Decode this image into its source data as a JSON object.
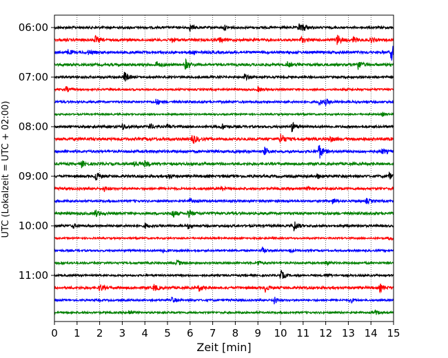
{
  "chart_data": {
    "type": "line",
    "title": "",
    "xlabel": "Zeit  [min]",
    "ylabel": "UTC (Lokalzeit = UTC + 02:00)",
    "xlim": [
      0,
      15
    ],
    "x_ticks": [
      "0",
      "1",
      "2",
      "3",
      "4",
      "5",
      "6",
      "7",
      "8",
      "9",
      "10",
      "11",
      "12",
      "13",
      "14",
      "15"
    ],
    "y_tick_labels": [
      "06:00",
      "07:00",
      "08:00",
      "09:00",
      "10:00",
      "11:00"
    ],
    "grid": "vertical dotted lines at each minute",
    "trace_interval_minutes": 15,
    "color_cycle": [
      "#000000",
      "#ff0000",
      "#0000ff",
      "#008000"
    ],
    "traces": [
      {
        "start": "06:00",
        "color": "#000000",
        "amplitude": 0.18,
        "events": [
          [
            6.0,
            0.5
          ],
          [
            7.5,
            0.4
          ],
          [
            10.8,
            0.7
          ],
          [
            11.0,
            0.5
          ]
        ]
      },
      {
        "start": "06:15",
        "color": "#ff0000",
        "amplitude": 0.2,
        "events": [
          [
            1.8,
            0.6
          ],
          [
            5.2,
            0.4
          ],
          [
            7.3,
            0.4
          ],
          [
            10.9,
            0.5
          ],
          [
            12.5,
            0.9
          ],
          [
            13.2,
            0.5
          ],
          [
            14.0,
            0.4
          ]
        ]
      },
      {
        "start": "06:30",
        "color": "#0000ff",
        "amplitude": 0.2,
        "events": [
          [
            0.6,
            0.4
          ],
          [
            1.5,
            0.3
          ],
          [
            6.0,
            0.3
          ],
          [
            14.9,
            1.4
          ]
        ]
      },
      {
        "start": "06:45",
        "color": "#008000",
        "amplitude": 0.2,
        "events": [
          [
            4.5,
            0.5
          ],
          [
            5.8,
            0.8
          ],
          [
            10.3,
            0.4
          ],
          [
            13.4,
            0.9
          ]
        ]
      },
      {
        "start": "07:00",
        "color": "#000000",
        "amplitude": 0.17,
        "events": [
          [
            3.1,
            0.9
          ],
          [
            8.4,
            0.5
          ]
        ]
      },
      {
        "start": "07:15",
        "color": "#ff0000",
        "amplitude": 0.15,
        "events": [
          [
            0.5,
            0.5
          ],
          [
            9.0,
            0.4
          ]
        ]
      },
      {
        "start": "07:30",
        "color": "#0000ff",
        "amplitude": 0.17,
        "events": [
          [
            4.5,
            0.5
          ],
          [
            11.7,
            0.5
          ],
          [
            12.0,
            0.4
          ]
        ]
      },
      {
        "start": "07:45",
        "color": "#008000",
        "amplitude": 0.13,
        "events": [
          [
            14.5,
            0.3
          ]
        ]
      },
      {
        "start": "08:00",
        "color": "#000000",
        "amplitude": 0.18,
        "events": [
          [
            3.0,
            0.5
          ],
          [
            4.2,
            0.5
          ],
          [
            5.0,
            0.4
          ],
          [
            7.4,
            0.5
          ],
          [
            10.5,
            0.8
          ]
        ]
      },
      {
        "start": "08:15",
        "color": "#ff0000",
        "amplitude": 0.22,
        "events": [
          [
            6.1,
            0.9
          ],
          [
            10.0,
            1.0
          ],
          [
            12.2,
            0.4
          ]
        ]
      },
      {
        "start": "08:30",
        "color": "#0000ff",
        "amplitude": 0.2,
        "events": [
          [
            9.3,
            0.6
          ],
          [
            11.7,
            1.3
          ],
          [
            14.5,
            0.4
          ]
        ]
      },
      {
        "start": "08:45",
        "color": "#008000",
        "amplitude": 0.2,
        "events": [
          [
            1.2,
            0.5
          ],
          [
            3.5,
            0.7
          ],
          [
            4.0,
            0.5
          ]
        ]
      },
      {
        "start": "09:00",
        "color": "#000000",
        "amplitude": 0.2,
        "events": [
          [
            1.8,
            0.9
          ],
          [
            5.0,
            0.4
          ],
          [
            11.6,
            0.4
          ],
          [
            14.8,
            0.5
          ]
        ]
      },
      {
        "start": "09:15",
        "color": "#ff0000",
        "amplitude": 0.18,
        "events": [
          [
            2.2,
            0.4
          ],
          [
            7.4,
            0.3
          ],
          [
            11.2,
            0.3
          ]
        ]
      },
      {
        "start": "09:30",
        "color": "#0000ff",
        "amplitude": 0.17,
        "events": [
          [
            6.0,
            0.4
          ],
          [
            12.3,
            0.4
          ],
          [
            13.8,
            0.4
          ]
        ]
      },
      {
        "start": "09:45",
        "color": "#008000",
        "amplitude": 0.2,
        "events": [
          [
            1.8,
            0.6
          ],
          [
            5.2,
            0.8
          ],
          [
            5.9,
            0.6
          ]
        ]
      },
      {
        "start": "10:00",
        "color": "#000000",
        "amplitude": 0.18,
        "events": [
          [
            0.8,
            0.4
          ],
          [
            4.0,
            0.4
          ],
          [
            5.9,
            0.4
          ],
          [
            10.6,
            0.9
          ]
        ]
      },
      {
        "start": "10:15",
        "color": "#ff0000",
        "amplitude": 0.13,
        "events": [
          [
            14.8,
            0.3
          ]
        ]
      },
      {
        "start": "10:30",
        "color": "#0000ff",
        "amplitude": 0.15,
        "events": [
          [
            4.8,
            0.4
          ],
          [
            9.2,
            0.5
          ],
          [
            10.4,
            0.3
          ]
        ]
      },
      {
        "start": "10:45",
        "color": "#008000",
        "amplitude": 0.16,
        "events": [
          [
            5.4,
            0.6
          ],
          [
            9.0,
            0.4
          ],
          [
            12.0,
            0.4
          ]
        ]
      },
      {
        "start": "11:00",
        "color": "#000000",
        "amplitude": 0.15,
        "events": [
          [
            10.0,
            0.9
          ],
          [
            12.0,
            0.3
          ]
        ]
      },
      {
        "start": "11:15",
        "color": "#ff0000",
        "amplitude": 0.2,
        "events": [
          [
            2.0,
            0.6
          ],
          [
            4.4,
            0.6
          ],
          [
            6.4,
            0.5
          ],
          [
            9.3,
            0.7
          ],
          [
            14.4,
            0.6
          ]
        ]
      },
      {
        "start": "11:30",
        "color": "#0000ff",
        "amplitude": 0.15,
        "events": [
          [
            5.2,
            0.5
          ],
          [
            9.7,
            0.7
          ],
          [
            13.1,
            0.4
          ]
        ]
      },
      {
        "start": "11:45",
        "color": "#008000",
        "amplitude": 0.15,
        "events": [
          [
            3.3,
            0.5
          ],
          [
            14.2,
            0.3
          ]
        ]
      }
    ]
  }
}
